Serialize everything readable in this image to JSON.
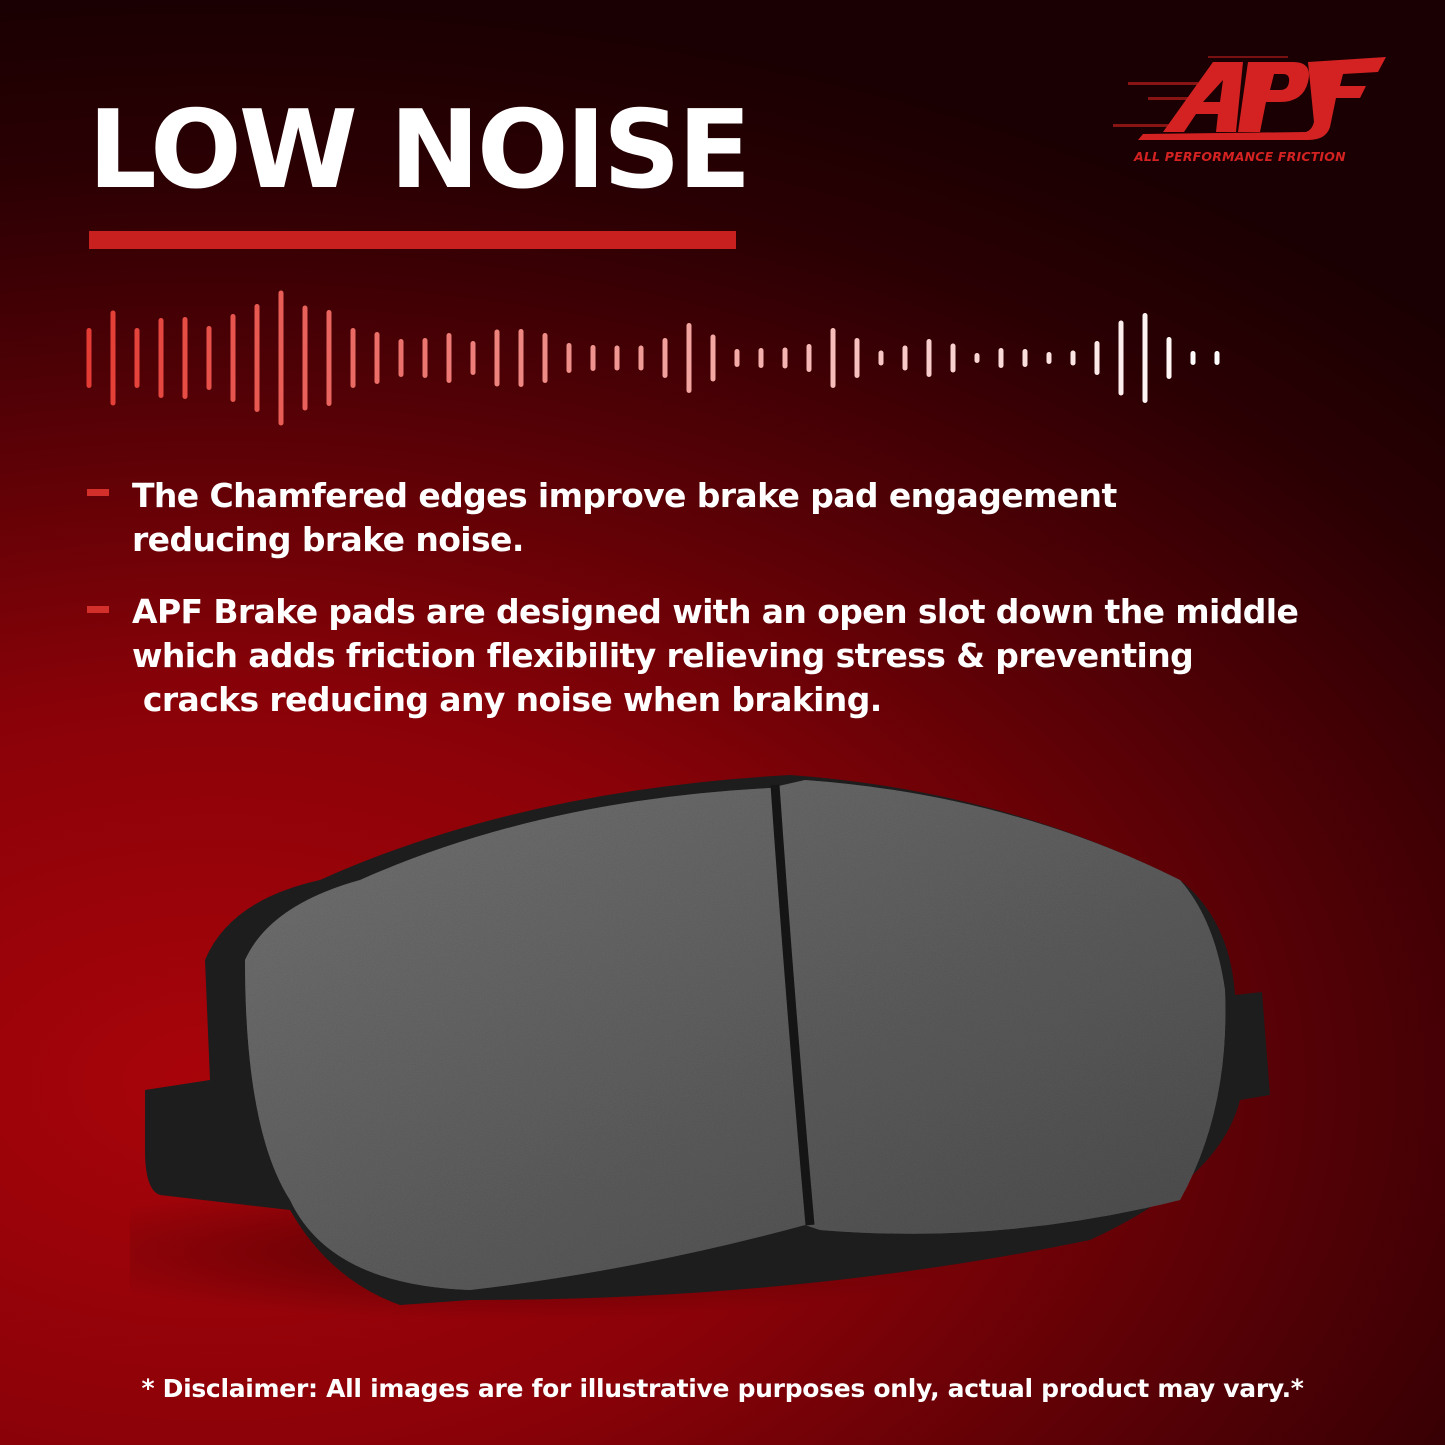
{
  "heading": "LOW NOISE",
  "logo": {
    "wordmark": "APF",
    "tagline": "ALL PERFORMANCE FRICTION",
    "color": "#d42222"
  },
  "accent_color": "#c8201f",
  "bullets": [
    {
      "lines": [
        "The Chamfered edges improve brake pad engagement",
        "reducing brake noise."
      ]
    },
    {
      "lines": [
        "APF Brake pads are designed with an open slot down the middle",
        "which adds friction flexibility relieving stress & preventing",
        " cracks reducing any noise when braking."
      ]
    }
  ],
  "disclaimer": "* Disclaimer: All images are for illustrative purposes only, actual product may vary.*"
}
